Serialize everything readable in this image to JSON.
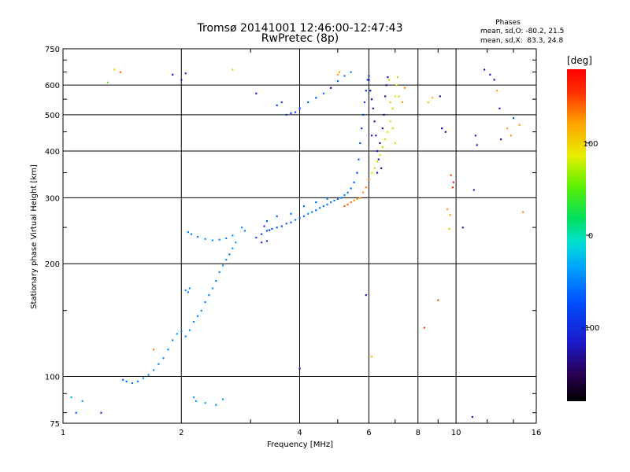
{
  "chart_data": {
    "type": "scatter",
    "title": "Tromsø 20141001 12:46:00-12:47:43",
    "subtitle": "RwPretec (8p)",
    "xlabel": "Frequency [MHz]",
    "ylabel": "Stationary phase Virtual Height [km]",
    "x_scale": "log2",
    "y_scale": "log",
    "xlim": [
      1,
      16
    ],
    "ylim": [
      75,
      750
    ],
    "x_ticks": [
      1,
      2,
      4,
      6,
      8,
      10,
      16
    ],
    "x_tick_labels": [
      "1",
      "2",
      "4",
      "6",
      "8",
      "10",
      "16"
    ],
    "y_ticks": [
      75,
      100,
      200,
      300,
      400,
      500,
      600,
      750
    ],
    "y_tick_labels": [
      "75",
      "100",
      "200",
      "300",
      "400",
      "500",
      "600",
      "750"
    ],
    "grid": true,
    "stats": {
      "heading": "Phases",
      "line_o": "mean, sd,O: -80.2, 21.5",
      "line_x": "mean, sd,X:  83.3, 24.8"
    },
    "colorbar": {
      "label": "[deg]",
      "min": -180,
      "max": 180,
      "ticks": [
        100,
        0,
        -100
      ],
      "tick_labels": [
        "100",
        "0",
        "-100"
      ]
    },
    "series": [
      {
        "points": [
          [
            1.05,
            88,
            -30
          ],
          [
            1.12,
            86,
            -35
          ],
          [
            1.08,
            80,
            -70
          ],
          [
            1.25,
            80,
            -90
          ],
          [
            1.42,
            98,
            -60
          ],
          [
            1.45,
            97,
            -55
          ],
          [
            1.5,
            96,
            -55
          ],
          [
            1.55,
            97,
            -50
          ],
          [
            1.6,
            99,
            -45
          ],
          [
            1.65,
            101,
            -40
          ],
          [
            1.7,
            104,
            -40
          ],
          [
            1.75,
            108,
            -42
          ],
          [
            1.8,
            112,
            -40
          ],
          [
            1.85,
            118,
            -45
          ],
          [
            1.9,
            125,
            -50
          ],
          [
            1.95,
            130,
            -40
          ],
          [
            2.0,
            132,
            -45
          ],
          [
            2.05,
            128,
            -45
          ],
          [
            2.1,
            133,
            -40
          ],
          [
            2.15,
            140,
            -50
          ],
          [
            2.2,
            145,
            -45
          ],
          [
            2.25,
            150,
            -40
          ],
          [
            2.3,
            158,
            -50
          ],
          [
            2.35,
            165,
            -45
          ],
          [
            2.4,
            172,
            -40
          ],
          [
            2.45,
            180,
            -50
          ],
          [
            2.5,
            190,
            -45
          ],
          [
            2.55,
            198,
            -40
          ],
          [
            2.6,
            205,
            -45
          ],
          [
            2.65,
            212,
            -50
          ],
          [
            2.7,
            220,
            -45
          ],
          [
            2.75,
            228,
            -40
          ],
          [
            2.7,
            238,
            -45
          ],
          [
            2.6,
            234,
            -50
          ],
          [
            2.5,
            232,
            -45
          ],
          [
            2.4,
            231,
            -40
          ],
          [
            2.3,
            233,
            -45
          ],
          [
            2.2,
            236,
            -50
          ],
          [
            2.12,
            240,
            -45
          ],
          [
            2.08,
            243,
            -50
          ],
          [
            2.85,
            250,
            -45
          ],
          [
            2.9,
            245,
            -50
          ],
          [
            2.05,
            170,
            -40
          ],
          [
            2.08,
            168,
            -45
          ],
          [
            2.1,
            172,
            -40
          ],
          [
            2.15,
            88,
            -40
          ],
          [
            2.18,
            86,
            -35
          ],
          [
            2.3,
            85,
            -30
          ],
          [
            2.45,
            84,
            -35
          ],
          [
            2.55,
            87,
            -30
          ],
          [
            3.1,
            235,
            -80
          ],
          [
            3.2,
            240,
            -75
          ],
          [
            3.3,
            245,
            -70
          ],
          [
            3.4,
            248,
            -65
          ],
          [
            3.5,
            250,
            -70
          ],
          [
            3.6,
            252,
            -75
          ],
          [
            3.7,
            256,
            -65
          ],
          [
            3.8,
            258,
            -60
          ],
          [
            3.9,
            262,
            -55
          ],
          [
            4.0,
            265,
            -60
          ],
          [
            4.1,
            268,
            -55
          ],
          [
            4.2,
            272,
            -50
          ],
          [
            4.3,
            275,
            -55
          ],
          [
            4.4,
            278,
            -60
          ],
          [
            4.5,
            282,
            -55
          ],
          [
            4.6,
            285,
            -50
          ],
          [
            4.7,
            288,
            -55
          ],
          [
            4.8,
            292,
            -50
          ],
          [
            4.9,
            295,
            -55
          ],
          [
            5.0,
            298,
            -60
          ],
          [
            5.1,
            300,
            -55
          ],
          [
            5.2,
            305,
            -50
          ],
          [
            5.3,
            310,
            -55
          ],
          [
            5.4,
            318,
            -60
          ],
          [
            5.5,
            330,
            -65
          ],
          [
            5.6,
            350,
            -70
          ],
          [
            5.65,
            380,
            -75
          ],
          [
            5.7,
            420,
            -80
          ],
          [
            5.75,
            460,
            -85
          ],
          [
            5.8,
            500,
            -90
          ],
          [
            5.85,
            540,
            -95
          ],
          [
            5.9,
            580,
            -95
          ],
          [
            5.95,
            620,
            -100
          ],
          [
            6.0,
            635,
            -100
          ],
          [
            3.3,
            260,
            -70
          ],
          [
            3.5,
            268,
            -65
          ],
          [
            3.8,
            272,
            -60
          ],
          [
            4.1,
            285,
            -55
          ],
          [
            4.4,
            292,
            -55
          ],
          [
            4.7,
            298,
            -50
          ],
          [
            3.25,
            252,
            -90
          ],
          [
            3.35,
            246,
            -95
          ],
          [
            3.2,
            228,
            -100
          ],
          [
            3.3,
            230,
            -95
          ],
          [
            6.0,
            620,
            -120
          ],
          [
            6.05,
            580,
            -125
          ],
          [
            6.1,
            550,
            -130
          ],
          [
            6.15,
            520,
            -125
          ],
          [
            6.2,
            480,
            -120
          ],
          [
            6.25,
            440,
            -115
          ],
          [
            6.3,
            400,
            -120
          ],
          [
            6.35,
            380,
            -115
          ],
          [
            6.4,
            420,
            -130
          ],
          [
            6.5,
            460,
            -120
          ],
          [
            6.55,
            500,
            -125
          ],
          [
            6.6,
            560,
            -130
          ],
          [
            6.65,
            600,
            -125
          ],
          [
            6.7,
            630,
            -120
          ],
          [
            6.1,
            440,
            -110
          ],
          [
            6.2,
            360,
            -110
          ],
          [
            6.3,
            350,
            -115
          ],
          [
            6.45,
            360,
            -118
          ],
          [
            5.7,
            300,
            120
          ],
          [
            5.8,
            310,
            125
          ],
          [
            5.9,
            320,
            130
          ],
          [
            6.0,
            335,
            135
          ],
          [
            5.2,
            285,
            140
          ],
          [
            5.3,
            288,
            138
          ],
          [
            5.4,
            292,
            135
          ],
          [
            5.5,
            295,
            130
          ],
          [
            5.6,
            298,
            128
          ],
          [
            6.1,
            350,
            90
          ],
          [
            6.2,
            360,
            85
          ],
          [
            6.3,
            375,
            80
          ],
          [
            6.4,
            390,
            75
          ],
          [
            6.5,
            410,
            70
          ],
          [
            6.6,
            430,
            75
          ],
          [
            6.7,
            450,
            80
          ],
          [
            6.8,
            480,
            78
          ],
          [
            6.9,
            520,
            75
          ],
          [
            7.0,
            560,
            80
          ],
          [
            7.05,
            600,
            75
          ],
          [
            7.1,
            630,
            70
          ],
          [
            7.0,
            420,
            72
          ],
          [
            6.9,
            460,
            70
          ],
          [
            6.8,
            540,
            68
          ],
          [
            6.75,
            620,
            70
          ],
          [
            7.15,
            560,
            72
          ],
          [
            3.7,
            500,
            -90
          ],
          [
            3.8,
            505,
            -85
          ],
          [
            3.9,
            508,
            -80
          ],
          [
            4.0,
            520,
            -75
          ],
          [
            4.2,
            540,
            -70
          ],
          [
            4.4,
            555,
            -65
          ],
          [
            4.6,
            570,
            -60
          ],
          [
            4.8,
            590,
            -55
          ],
          [
            5.0,
            615,
            -60
          ],
          [
            5.2,
            635,
            -55
          ],
          [
            5.4,
            650,
            -50
          ],
          [
            3.5,
            530,
            -80
          ],
          [
            3.6,
            540,
            -85
          ],
          [
            4.8,
            590,
            -120
          ],
          [
            1.3,
            610,
            60
          ],
          [
            1.4,
            650,
            140
          ],
          [
            1.9,
            640,
            -120
          ],
          [
            2.0,
            620,
            -100
          ],
          [
            2.05,
            645,
            -95
          ],
          [
            2.7,
            660,
            100
          ],
          [
            3.1,
            570,
            -120
          ],
          [
            5.0,
            640,
            120
          ],
          [
            5.05,
            650,
            115
          ],
          [
            7.4,
            590,
            130
          ],
          [
            7.3,
            540,
            125
          ],
          [
            8.5,
            540,
            100
          ],
          [
            8.7,
            555,
            110
          ],
          [
            9.1,
            560,
            -130
          ],
          [
            9.2,
            460,
            -120
          ],
          [
            9.4,
            450,
            -130
          ],
          [
            9.5,
            280,
            120
          ],
          [
            9.6,
            248,
            110
          ],
          [
            9.65,
            270,
            120
          ],
          [
            9.7,
            345,
            150
          ],
          [
            9.8,
            320,
            160
          ],
          [
            9.85,
            330,
            160
          ],
          [
            10.4,
            250,
            -120
          ],
          [
            11.2,
            440,
            -110
          ],
          [
            11.3,
            415,
            -120
          ],
          [
            11.8,
            660,
            -130
          ],
          [
            12.2,
            640,
            -125
          ],
          [
            12.5,
            620,
            -120
          ],
          [
            12.7,
            580,
            120
          ],
          [
            12.9,
            520,
            -110
          ],
          [
            13.0,
            430,
            -120
          ],
          [
            13.5,
            460,
            120
          ],
          [
            13.8,
            440,
            125
          ],
          [
            14.0,
            490,
            -80
          ],
          [
            14.5,
            470,
            120
          ],
          [
            14.8,
            275,
            130
          ],
          [
            11.0,
            78,
            -110
          ],
          [
            11.1,
            315,
            -100
          ],
          [
            9.0,
            160,
            150
          ],
          [
            8.3,
            135,
            150
          ],
          [
            5.9,
            165,
            -120
          ],
          [
            6.1,
            113,
            110
          ],
          [
            4.0,
            105,
            -110
          ],
          [
            1.7,
            118,
            130
          ],
          [
            1.35,
            660,
            100
          ]
        ]
      }
    ]
  }
}
